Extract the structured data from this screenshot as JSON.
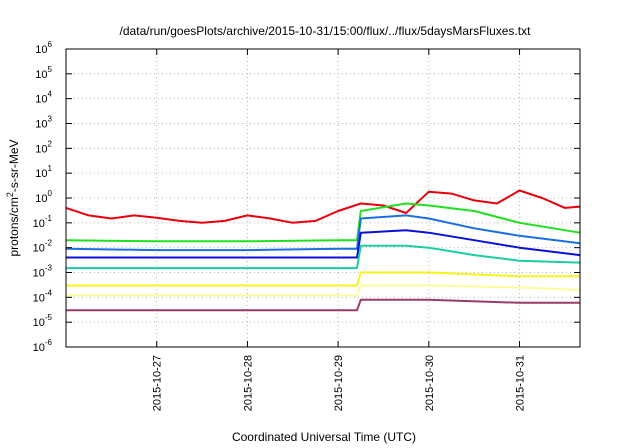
{
  "chart_data": {
    "type": "line",
    "title": "/data/run/goesPlots/archive/2015-10-31/15:00/flux/../flux/5daysMarsFluxes.txt",
    "xlabel": "Coordinated Universal Time (UTC)",
    "ylabel": {
      "prefix": "protons/cm",
      "sup": "2",
      "suffix": "-s-sr-MeV"
    },
    "xlim": [
      "2015-10-26T00:00",
      "2015-10-31T16:00"
    ],
    "ylim": [
      1e-06,
      1000000.0
    ],
    "yscale": "log",
    "grid": true,
    "legend": "none",
    "x_ticks": [
      "2015-10-27",
      "2015-10-28",
      "2015-10-29",
      "2015-10-30",
      "2015-10-31"
    ],
    "y_ticks": [
      {
        "base": "10",
        "exp": "-6"
      },
      {
        "base": "10",
        "exp": "-5"
      },
      {
        "base": "10",
        "exp": "-4"
      },
      {
        "base": "10",
        "exp": "-3"
      },
      {
        "base": "10",
        "exp": "-2"
      },
      {
        "base": "10",
        "exp": "-1"
      },
      {
        "base": "10",
        "exp": "0"
      },
      {
        "base": "10",
        "exp": "1"
      },
      {
        "base": "10",
        "exp": "2"
      },
      {
        "base": "10",
        "exp": "3"
      },
      {
        "base": "10",
        "exp": "4"
      },
      {
        "base": "10",
        "exp": "5"
      },
      {
        "base": "10",
        "exp": "6"
      }
    ],
    "series": [
      {
        "color": "#e8000b",
        "points": [
          [
            "2015-10-26T00:00",
            0.4
          ],
          [
            "2015-10-26T06:00",
            0.2
          ],
          [
            "2015-10-26T12:00",
            0.15
          ],
          [
            "2015-10-26T18:00",
            0.2
          ],
          [
            "2015-10-27T00:00",
            0.16
          ],
          [
            "2015-10-27T06:00",
            0.12
          ],
          [
            "2015-10-27T12:00",
            0.1
          ],
          [
            "2015-10-27T18:00",
            0.12
          ],
          [
            "2015-10-28T00:00",
            0.2
          ],
          [
            "2015-10-28T06:00",
            0.15
          ],
          [
            "2015-10-28T12:00",
            0.1
          ],
          [
            "2015-10-28T18:00",
            0.12
          ],
          [
            "2015-10-29T00:00",
            0.3
          ],
          [
            "2015-10-29T06:00",
            0.6
          ],
          [
            "2015-10-29T12:00",
            0.5
          ],
          [
            "2015-10-29T18:00",
            0.25
          ],
          [
            "2015-10-30T00:00",
            1.8
          ],
          [
            "2015-10-30T06:00",
            1.5
          ],
          [
            "2015-10-30T12:00",
            0.8
          ],
          [
            "2015-10-30T18:00",
            0.6
          ],
          [
            "2015-10-31T00:00",
            2.0
          ],
          [
            "2015-10-31T06:00",
            1.0
          ],
          [
            "2015-10-31T12:00",
            0.4
          ],
          [
            "2015-10-31T16:00",
            0.45
          ]
        ]
      },
      {
        "color": "#1fe11f",
        "points": [
          [
            "2015-10-26T00:00",
            0.02
          ],
          [
            "2015-10-27T00:00",
            0.018
          ],
          [
            "2015-10-28T00:00",
            0.018
          ],
          [
            "2015-10-29T00:00",
            0.02
          ],
          [
            "2015-10-29T05:00",
            0.02
          ],
          [
            "2015-10-29T06:00",
            0.3
          ],
          [
            "2015-10-29T18:00",
            0.6
          ],
          [
            "2015-10-30T00:00",
            0.5
          ],
          [
            "2015-10-30T12:00",
            0.3
          ],
          [
            "2015-10-31T00:00",
            0.1
          ],
          [
            "2015-10-31T16:00",
            0.04
          ]
        ]
      },
      {
        "color": "#1a6fe3",
        "points": [
          [
            "2015-10-26T00:00",
            0.009
          ],
          [
            "2015-10-27T00:00",
            0.008
          ],
          [
            "2015-10-28T00:00",
            0.008
          ],
          [
            "2015-10-29T00:00",
            0.009
          ],
          [
            "2015-10-29T05:00",
            0.009
          ],
          [
            "2015-10-29T06:00",
            0.15
          ],
          [
            "2015-10-29T18:00",
            0.2
          ],
          [
            "2015-10-30T00:00",
            0.15
          ],
          [
            "2015-10-30T12:00",
            0.06
          ],
          [
            "2015-10-31T00:00",
            0.03
          ],
          [
            "2015-10-31T16:00",
            0.015
          ]
        ]
      },
      {
        "color": "#0a10d6",
        "points": [
          [
            "2015-10-26T00:00",
            0.004
          ],
          [
            "2015-10-27T00:00",
            0.004
          ],
          [
            "2015-10-28T00:00",
            0.004
          ],
          [
            "2015-10-29T00:00",
            0.004
          ],
          [
            "2015-10-29T05:00",
            0.004
          ],
          [
            "2015-10-29T06:00",
            0.04
          ],
          [
            "2015-10-29T18:00",
            0.05
          ],
          [
            "2015-10-30T00:00",
            0.04
          ],
          [
            "2015-10-30T12:00",
            0.02
          ],
          [
            "2015-10-31T00:00",
            0.01
          ],
          [
            "2015-10-31T16:00",
            0.005
          ]
        ]
      },
      {
        "color": "#18cfa0",
        "points": [
          [
            "2015-10-26T00:00",
            0.0015
          ],
          [
            "2015-10-27T00:00",
            0.0015
          ],
          [
            "2015-10-28T00:00",
            0.0015
          ],
          [
            "2015-10-29T00:00",
            0.0015
          ],
          [
            "2015-10-29T05:00",
            0.0015
          ],
          [
            "2015-10-29T06:00",
            0.012
          ],
          [
            "2015-10-29T18:00",
            0.012
          ],
          [
            "2015-10-30T00:00",
            0.01
          ],
          [
            "2015-10-30T12:00",
            0.005
          ],
          [
            "2015-10-31T00:00",
            0.003
          ],
          [
            "2015-10-31T16:00",
            0.0025
          ]
        ]
      },
      {
        "color": "#f5f51a",
        "points": [
          [
            "2015-10-26T00:00",
            0.0003
          ],
          [
            "2015-10-27T00:00",
            0.0003
          ],
          [
            "2015-10-28T00:00",
            0.0003
          ],
          [
            "2015-10-29T00:00",
            0.0003
          ],
          [
            "2015-10-29T05:00",
            0.0003
          ],
          [
            "2015-10-29T06:00",
            0.001
          ],
          [
            "2015-10-30T00:00",
            0.001
          ],
          [
            "2015-10-31T00:00",
            0.0007
          ],
          [
            "2015-10-31T16:00",
            0.0007
          ]
        ]
      },
      {
        "color": "#fbfc9a",
        "points": [
          [
            "2015-10-26T00:00",
            0.00012
          ],
          [
            "2015-10-27T00:00",
            0.00012
          ],
          [
            "2015-10-28T00:00",
            0.00012
          ],
          [
            "2015-10-29T00:00",
            0.00012
          ],
          [
            "2015-10-29T05:00",
            0.00012
          ],
          [
            "2015-10-29T06:00",
            0.0003
          ],
          [
            "2015-10-30T00:00",
            0.0003
          ],
          [
            "2015-10-31T00:00",
            0.00025
          ],
          [
            "2015-10-31T16:00",
            0.0002
          ]
        ]
      },
      {
        "color": "#9a3a6a",
        "points": [
          [
            "2015-10-26T00:00",
            3e-05
          ],
          [
            "2015-10-27T00:00",
            3e-05
          ],
          [
            "2015-10-28T00:00",
            3e-05
          ],
          [
            "2015-10-29T00:00",
            3e-05
          ],
          [
            "2015-10-29T05:00",
            3e-05
          ],
          [
            "2015-10-29T06:00",
            8e-05
          ],
          [
            "2015-10-30T00:00",
            8e-05
          ],
          [
            "2015-10-31T00:00",
            6e-05
          ],
          [
            "2015-10-31T16:00",
            6e-05
          ]
        ]
      }
    ]
  }
}
